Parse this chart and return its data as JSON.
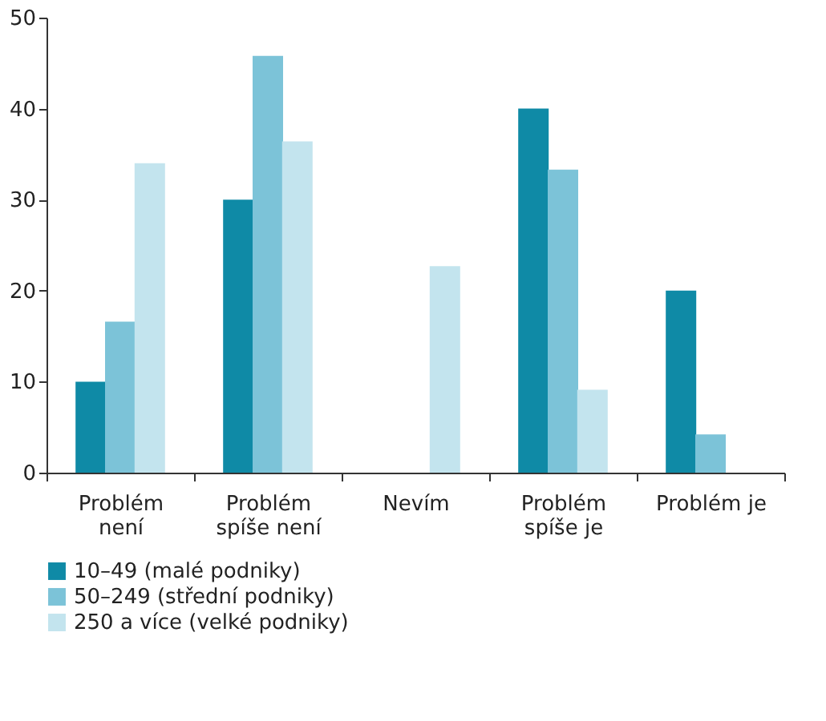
{
  "chart_data": {
    "type": "bar",
    "categories": [
      "Problém\nnení",
      "Problém\nspíše není",
      "Nevím",
      "Problém\nspíše je",
      "Problém je"
    ],
    "series": [
      {
        "name": "10–49 (malé podniky)",
        "color": "#0f8aa6",
        "values": [
          10,
          30,
          0,
          40,
          20
        ]
      },
      {
        "name": "50–249 (střední podniky)",
        "color": "#7cc3d8",
        "values": [
          16.6,
          45.8,
          0,
          33.3,
          4.2
        ]
      },
      {
        "name": "250 a více (velké podniky)",
        "color": "#c3e4ee",
        "values": [
          34,
          36.4,
          22.7,
          9.1,
          0
        ]
      }
    ],
    "ylim": [
      0,
      50
    ],
    "yticks": [
      0,
      10,
      20,
      30,
      40,
      50
    ],
    "grid": false,
    "legend": "bottom left"
  }
}
